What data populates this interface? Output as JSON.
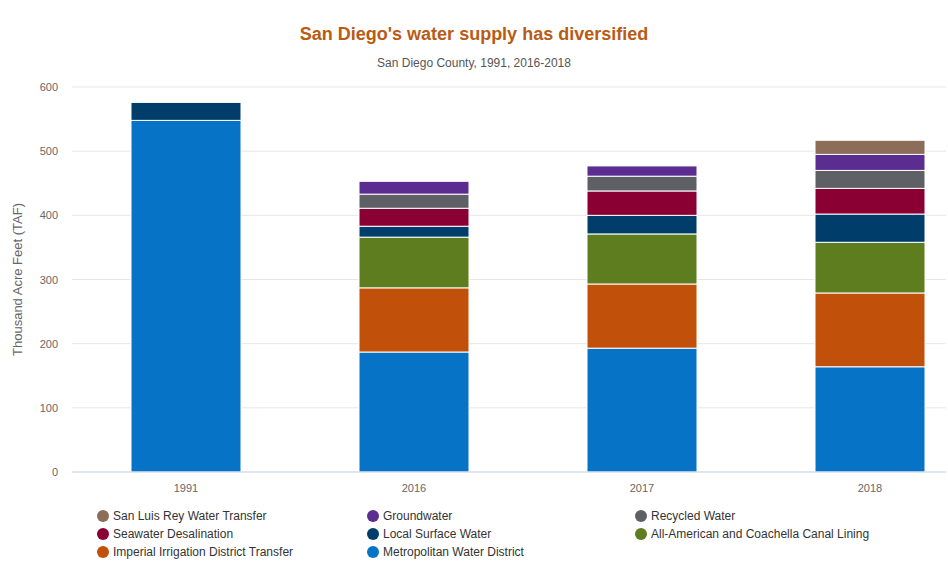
{
  "chart_data": {
    "type": "bar",
    "stacked": true,
    "grid": true,
    "legend": "bottom",
    "title": "San Diego's water supply has diversified",
    "subtitle": "San Diego County, 1991, 2016-2018",
    "y_label": "Thousand Acre Feet (TAF)",
    "categories": [
      "1991",
      "2016",
      "2017",
      "2018"
    ],
    "ylim": [
      0,
      600
    ],
    "yticks": [
      0,
      100,
      200,
      300,
      400,
      500,
      600
    ],
    "series": [
      {
        "name": "Metropolitan Water District",
        "color": "#0673c7",
        "values": [
          548,
          187,
          193,
          164
        ]
      },
      {
        "name": "Imperial Irrigation District Transfer",
        "color": "#c0500a",
        "values": [
          null,
          100,
          100,
          115
        ]
      },
      {
        "name": "All-American and Coachella Canal Lining",
        "color": "#5e7d1e",
        "values": [
          null,
          79,
          78,
          79
        ]
      },
      {
        "name": "Local Surface Water",
        "color": "#003d6b",
        "values": [
          28,
          17,
          29,
          44
        ]
      },
      {
        "name": "Seawater Desalination",
        "color": "#8b0033",
        "values": [
          null,
          28,
          38,
          40
        ]
      },
      {
        "name": "Recycled Water",
        "color": "#5f6065",
        "values": [
          null,
          22,
          23,
          28
        ]
      },
      {
        "name": "Groundwater",
        "color": "#5c2d91",
        "values": [
          null,
          20,
          16,
          25
        ]
      },
      {
        "name": "San Luis Rey Water Transfer",
        "color": "#8c6d5a",
        "values": [
          null,
          null,
          null,
          22
        ]
      }
    ]
  }
}
